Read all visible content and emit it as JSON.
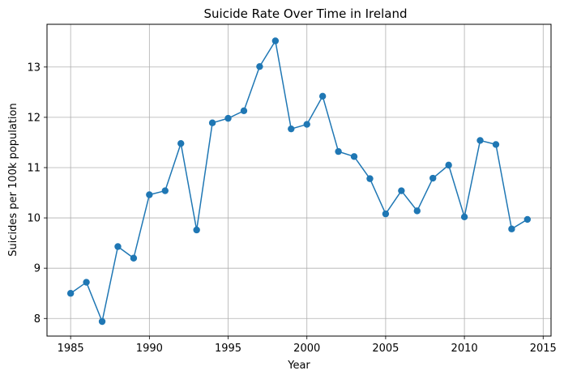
{
  "chart_data": {
    "type": "line",
    "title": "Suicide Rate Over Time in Ireland",
    "xlabel": "Year",
    "ylabel": "Suicides per 100k population",
    "xlim": [
      1983.5,
      2015.5
    ],
    "ylim": [
      7.65,
      13.85
    ],
    "xticks": [
      1985,
      1990,
      1995,
      2000,
      2005,
      2010,
      2015
    ],
    "yticks": [
      8,
      9,
      10,
      11,
      12,
      13
    ],
    "grid": true,
    "marker": "circle",
    "color": "#1f77b4",
    "series": [
      {
        "x": [
          1985,
          1986,
          1987,
          1988,
          1989,
          1990,
          1991,
          1992,
          1993,
          1994,
          1995,
          1996,
          1997,
          1998,
          1999,
          2000,
          2001,
          2002,
          2003,
          2004,
          2005,
          2006,
          2007,
          2008,
          2009,
          2010,
          2011,
          2012,
          2013,
          2014
        ],
        "values": [
          8.5,
          8.72,
          7.94,
          9.43,
          9.2,
          10.46,
          10.54,
          11.48,
          9.76,
          11.89,
          11.98,
          12.13,
          13.01,
          13.52,
          11.77,
          11.86,
          12.42,
          11.32,
          11.22,
          10.78,
          10.08,
          10.54,
          10.14,
          10.79,
          11.05,
          10.02,
          11.54,
          11.46,
          9.78,
          9.97
        ]
      }
    ]
  }
}
